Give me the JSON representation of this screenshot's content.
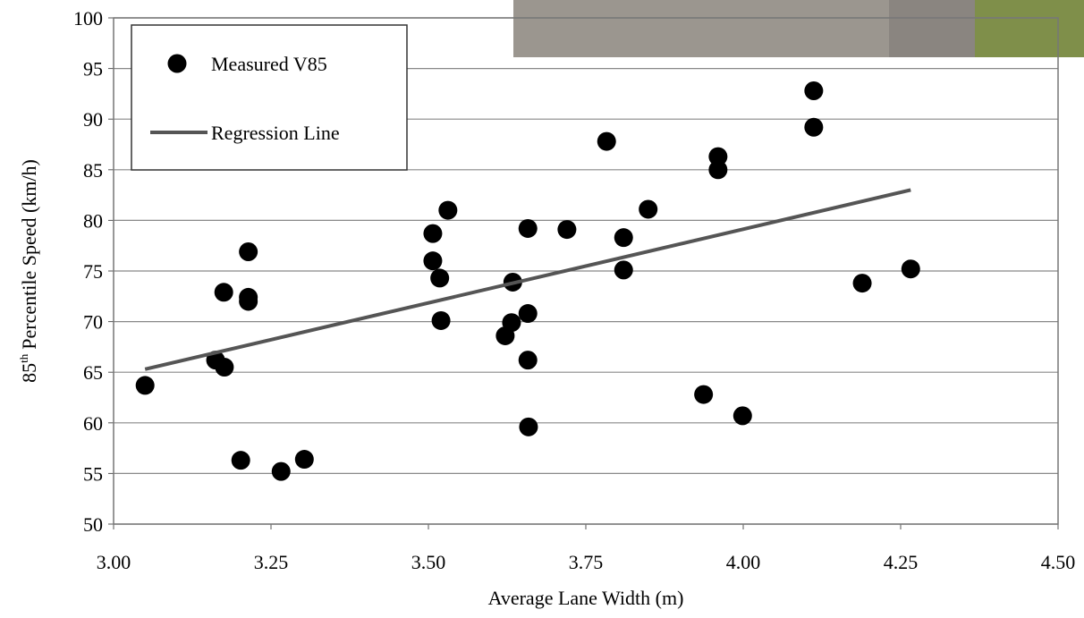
{
  "chart_data": {
    "type": "scatter",
    "x_label": "Average Lane Width (m)",
    "y_label": {
      "number": "85",
      "superscript": "th",
      "text": "Percentile Speed (km/h)"
    },
    "xlim": [
      3.0,
      4.5
    ],
    "ylim": [
      50,
      100
    ],
    "xticks": [
      {
        "value": 3.0,
        "label": "3.00"
      },
      {
        "value": 3.25,
        "label": "3.25"
      },
      {
        "value": 3.5,
        "label": "3.50"
      },
      {
        "value": 3.75,
        "label": "3.75"
      },
      {
        "value": 4.0,
        "label": "4.00"
      },
      {
        "value": 4.25,
        "label": "4.25"
      },
      {
        "value": 4.5,
        "label": "4.50"
      }
    ],
    "yticks": [
      50,
      55,
      60,
      65,
      70,
      75,
      80,
      85,
      90,
      95,
      100
    ],
    "grid": true,
    "legend": "upper left",
    "series": [
      {
        "name": "Measured V85",
        "style": "markers",
        "color": "#000000",
        "x": [
          3.05,
          3.162,
          3.176,
          3.175,
          3.214,
          3.214,
          3.214,
          3.202,
          3.266,
          3.303,
          3.507,
          3.507,
          3.518,
          3.52,
          3.531,
          3.622,
          3.632,
          3.634,
          3.658,
          3.658,
          3.658,
          3.659,
          3.72,
          3.783,
          3.81,
          3.81,
          3.849,
          3.937,
          3.999,
          3.96,
          3.96,
          4.112,
          4.112,
          4.189,
          4.266
        ],
        "values": [
          63.7,
          66.2,
          65.5,
          72.9,
          76.9,
          72.4,
          72.0,
          56.3,
          55.2,
          56.4,
          78.7,
          76.0,
          74.3,
          70.1,
          81.0,
          68.6,
          69.9,
          73.9,
          79.2,
          70.8,
          66.2,
          59.6,
          79.1,
          87.8,
          78.3,
          75.1,
          81.1,
          62.8,
          60.7,
          86.3,
          85.0,
          92.8,
          89.2,
          73.8,
          75.2
        ]
      },
      {
        "name": "Regression Line",
        "style": "line",
        "color": "#555555",
        "x": [
          3.05,
          4.266
        ],
        "values": [
          65.3,
          83.0
        ]
      }
    ]
  }
}
